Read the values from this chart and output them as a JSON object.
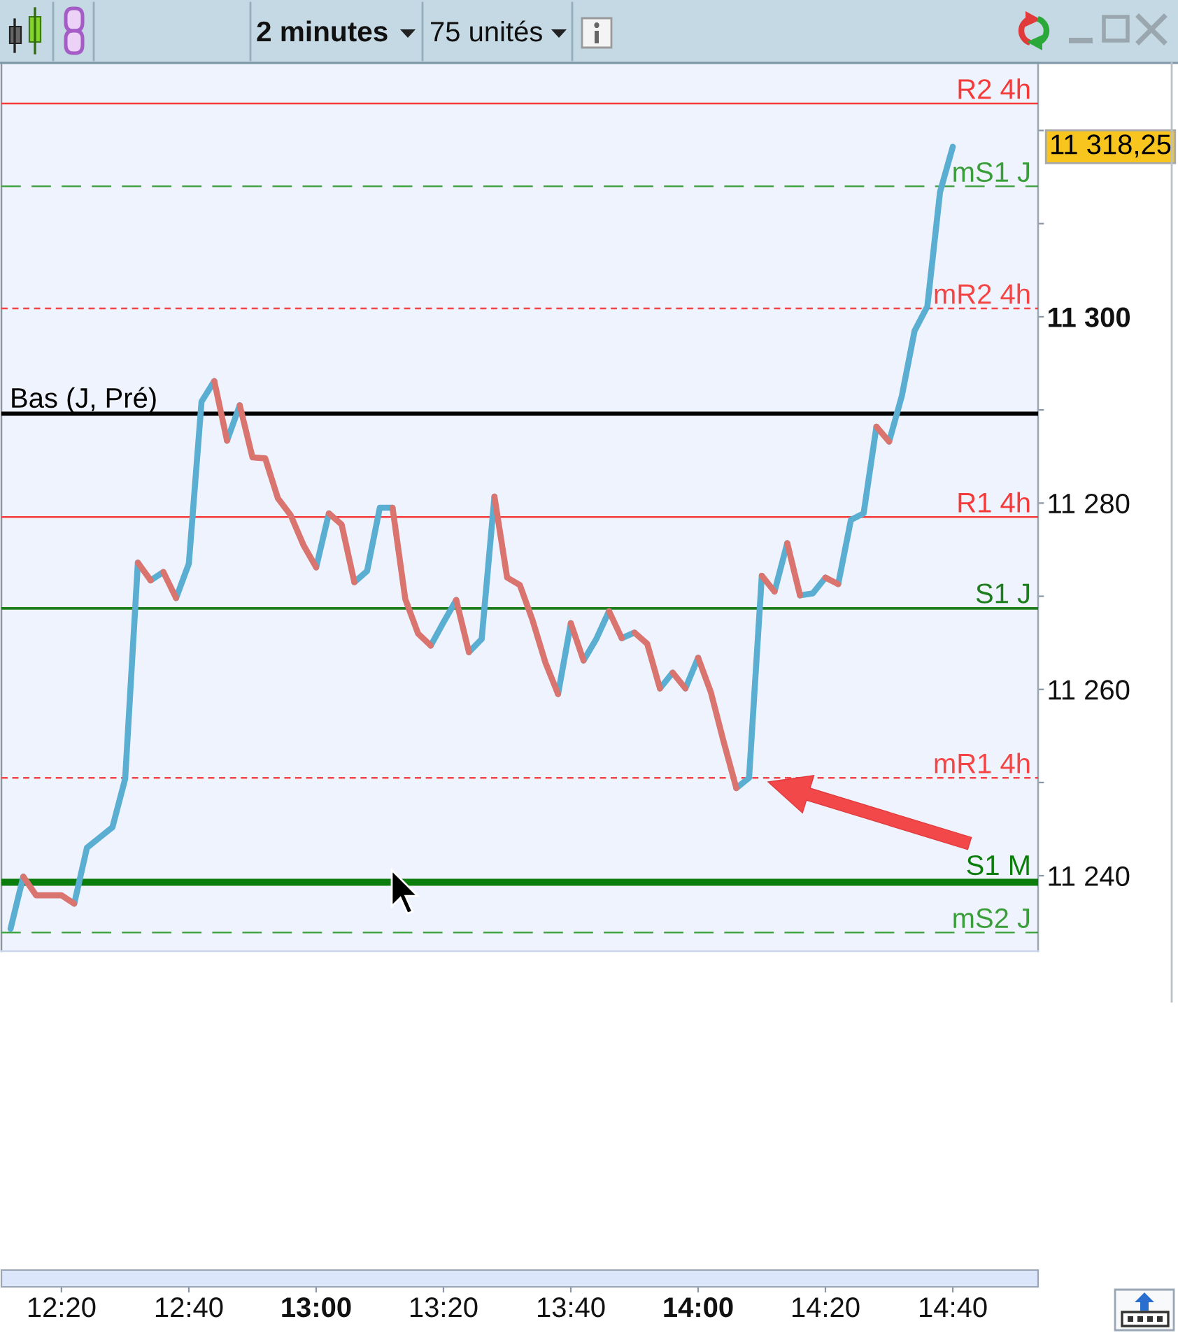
{
  "chart_data": {
    "type": "line",
    "title": "2 minutes",
    "subtitle": "75 unités",
    "series": [
      {
        "axis": "y2",
        "color": "#5aaed2",
        "x": [
          12.2,
          12.2333,
          12.25,
          12.3667,
          12.4,
          12.4333,
          12.4667,
          12.5,
          12.5333,
          12.55,
          12.5667,
          12.6,
          12.6167,
          12.6333,
          12.6667,
          12.7,
          12.7333,
          12.75,
          12.7667,
          12.8,
          12.8167,
          13,
          13.0333,
          13.05,
          13.1,
          13.1333,
          13.1667,
          13.2,
          13.2167,
          13.3,
          13.3333,
          13.3667,
          13.3833,
          13.4,
          13.4333,
          13.4667,
          13.4833,
          13.6333,
          13.6667,
          13.6833,
          13.7,
          13.7333,
          13.7667,
          13.7833,
          13.8,
          13.8333,
          13.85,
          13.9,
          13.9333,
          13.95,
          13.9667,
          14,
          14.0167,
          14.1,
          14.1333,
          14.1667,
          14.1833,
          14.2,
          14.2333,
          14.25,
          14.2667,
          14.3,
          14.3333,
          14.35,
          14.3667,
          14.4,
          14.4333,
          14.4667,
          14.4833,
          14.5,
          14.5333,
          14.5667,
          14.6,
          14.6333,
          14.6667
        ],
        "values": [
          11234.3,
          11239.9,
          null,
          11237.0,
          11243.0,
          11244.1,
          11245.2,
          11250.4,
          11273.6,
          null,
          11271.7,
          11272.6,
          null,
          11269.8,
          11273.5,
          11290.9,
          11293.1,
          null,
          11286.7,
          11290.5,
          null,
          11273.1,
          11278.9,
          null,
          11271.5,
          11272.7,
          11279.5,
          11279.5,
          null,
          11264.7,
          11267.2,
          11269.6,
          null,
          11264.0,
          11265.4,
          11280.7,
          null,
          11259.5,
          11267.1,
          null,
          11263.1,
          11265.4,
          11268.4,
          null,
          11265.5,
          11266.1,
          null,
          11260.1,
          11261.8,
          null,
          11260.1,
          11263.4,
          null,
          11249.4,
          11250.5,
          11272.2,
          null,
          11270.5,
          11275.7,
          null,
          11270.1,
          11270.3,
          11272.0,
          null,
          11271.3,
          11278.2,
          11278.9,
          11288.2,
          null,
          11286.6,
          11291.5,
          11298.5,
          11301.1,
          11313.4,
          11318.25
        ]
      },
      {
        "axis": "y2",
        "color": "#d9746f",
        "x": [
          12.2333,
          12.2667,
          12.3,
          12.3333,
          12.3667,
          12.45,
          12.5333,
          12.5667,
          12.5833,
          12.6,
          12.6333,
          12.65,
          12.7333,
          12.7667,
          12.7833,
          12.8,
          12.8333,
          12.8667,
          12.9,
          12.9333,
          12.9667,
          13,
          13.0167,
          13.0333,
          13.0667,
          13.1,
          13.15,
          13.2,
          13.2333,
          13.2667,
          13.3,
          13.3167,
          13.3667,
          13.4,
          13.4167,
          13.4667,
          13.5,
          13.5333,
          13.5667,
          13.6,
          13.6333,
          13.65,
          13.6667,
          13.7,
          13.7167,
          13.7667,
          13.8,
          13.8167,
          13.8333,
          13.8667,
          13.9,
          13.9167,
          13.9333,
          13.9667,
          13.9833,
          14,
          14.0333,
          14.0667,
          14.1,
          14.1167,
          14.1667,
          14.2,
          14.2167,
          14.2333,
          14.2667,
          14.3167,
          14.3333,
          14.3667,
          14.4,
          14.4667,
          14.5
        ],
        "values": [
          11239.9,
          11237.9,
          11237.9,
          11237.9,
          11237.0,
          null,
          11273.6,
          11271.7,
          null,
          11272.6,
          11269.8,
          null,
          11293.1,
          11286.7,
          null,
          11290.5,
          11284.9,
          11284.8,
          11280.5,
          11278.7,
          11275.5,
          11273.1,
          null,
          11278.9,
          11277.7,
          11271.5,
          null,
          11279.5,
          11269.7,
          11266.0,
          11264.7,
          null,
          11269.6,
          11264.0,
          null,
          11280.7,
          11272.0,
          11271.2,
          11267.4,
          11262.9,
          11259.5,
          null,
          11267.1,
          11263.1,
          null,
          11268.4,
          11265.5,
          null,
          11266.1,
          11264.9,
          11260.1,
          null,
          11261.8,
          11260.1,
          null,
          11263.4,
          11259.7,
          11254.4,
          11249.4,
          null,
          11272.2,
          11270.5,
          null,
          11275.7,
          11270.1,
          null,
          11272.0,
          11271.3,
          null,
          11288.2,
          11286.6
        ]
      }
    ],
    "annotations": [
      "11 318,25"
    ],
    "xlim": [
      12.176,
      14.89
    ],
    "xticks": [
      {
        "value": 12.3333,
        "label": "12:20"
      },
      {
        "value": 12.6667,
        "label": "12:40"
      },
      {
        "value": 13,
        "label": "13:00"
      },
      {
        "value": 13.3333,
        "label": "13:20"
      },
      {
        "value": 13.6667,
        "label": "13:40"
      },
      {
        "value": 14,
        "label": "14:00"
      },
      {
        "value": 14.3333,
        "label": "14:20"
      },
      {
        "value": 14.6667,
        "label": "14:40"
      }
    ],
    "y2lim": [
      11231.9,
      11327.25
    ],
    "y2ticks": [
      {
        "value": 11240,
        "label": "11 240"
      },
      {
        "value": 11250,
        "label": null
      },
      {
        "value": 11260,
        "label": "11 260"
      },
      {
        "value": 11270,
        "label": null
      },
      {
        "value": 11280,
        "label": "11 280"
      },
      {
        "value": 11290,
        "label": null
      },
      {
        "value": 11300,
        "label": "11 300"
      },
      {
        "value": 11310,
        "label": null
      },
      {
        "value": 11320,
        "label": null
      }
    ],
    "ref_lines": [
      {
        "axis": "y2",
        "value": 11322.9,
        "label": "R2 4h",
        "color": "#f53a3a"
      },
      {
        "axis": "y2",
        "value": 11314.0,
        "label": "mS1 J",
        "color": "#3a9f3a",
        "line_style": "dashed"
      },
      {
        "axis": "y2",
        "value": 11300.9,
        "label": "mR2 4h",
        "color": "#f54444",
        "line_style": "dotted"
      },
      {
        "axis": "y2",
        "value": 11289.6,
        "label": "Bas (J, Pré)",
        "color": "#000000"
      },
      {
        "axis": "y2",
        "value": 11278.5,
        "label": "R1 4h",
        "color": "#f53a3a"
      },
      {
        "axis": "y2",
        "value": 11268.7,
        "label": "S1 J",
        "color": "#1e7d1e"
      },
      {
        "axis": "y2",
        "value": 11250.5,
        "label": "mR1 4h",
        "color": "#f54444",
        "line_style": "dotted"
      },
      {
        "axis": "y2",
        "value": 11239.3,
        "label": "S1 M",
        "color": "#0a7d0a"
      },
      {
        "axis": "y2",
        "value": 11233.9,
        "label": "mS2 J",
        "color": "#3a9f3a",
        "line_style": "dashed"
      }
    ]
  }
}
